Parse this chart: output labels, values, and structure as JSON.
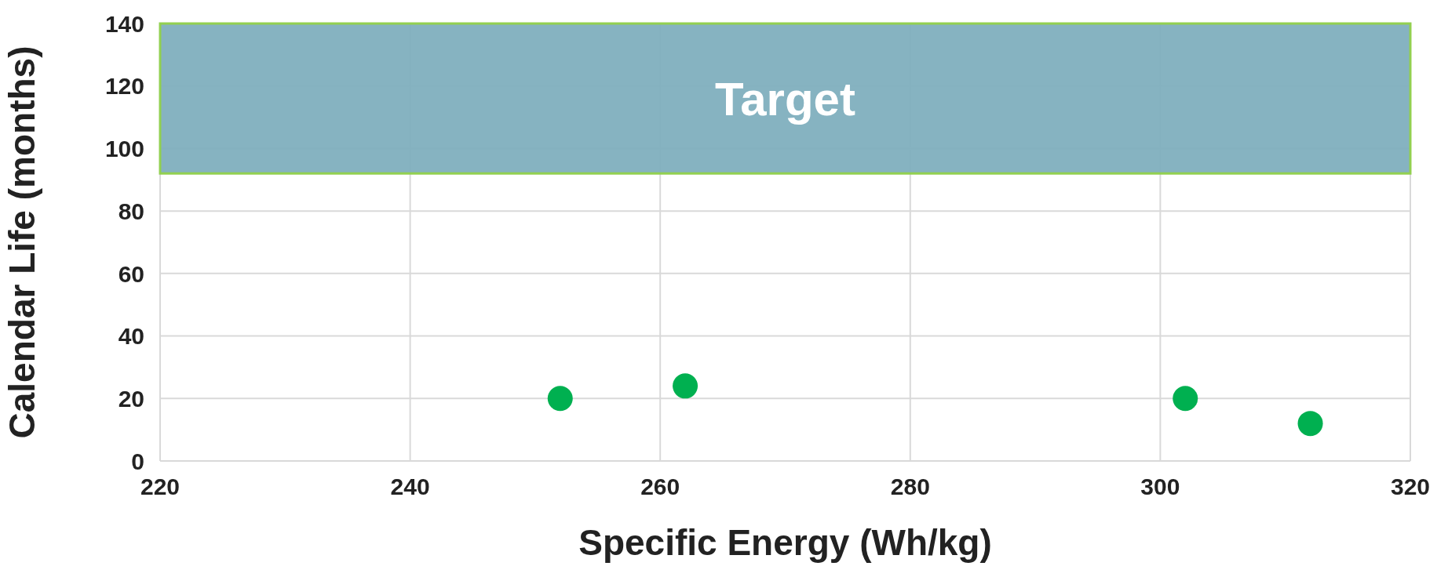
{
  "chart_data": {
    "type": "scatter",
    "xlabel": "Specific Energy (Wh/kg)",
    "ylabel": "Calendar Life (months)",
    "x": [
      252,
      262,
      302,
      312
    ],
    "series": [
      {
        "color": "#00b050",
        "values": [
          20,
          24,
          20,
          12
        ]
      }
    ],
    "xlim": [
      220,
      320
    ],
    "xticks": [
      220,
      240,
      260,
      280,
      300,
      320
    ],
    "ylim": [
      0,
      140
    ],
    "yticks": [
      0,
      20,
      40,
      60,
      80,
      100,
      120,
      140
    ],
    "grid": true,
    "marker": "circle",
    "bands": [
      {
        "axis": "y",
        "from": 92,
        "to": 140,
        "label": "Target",
        "color": "#7fafbe"
      }
    ]
  }
}
